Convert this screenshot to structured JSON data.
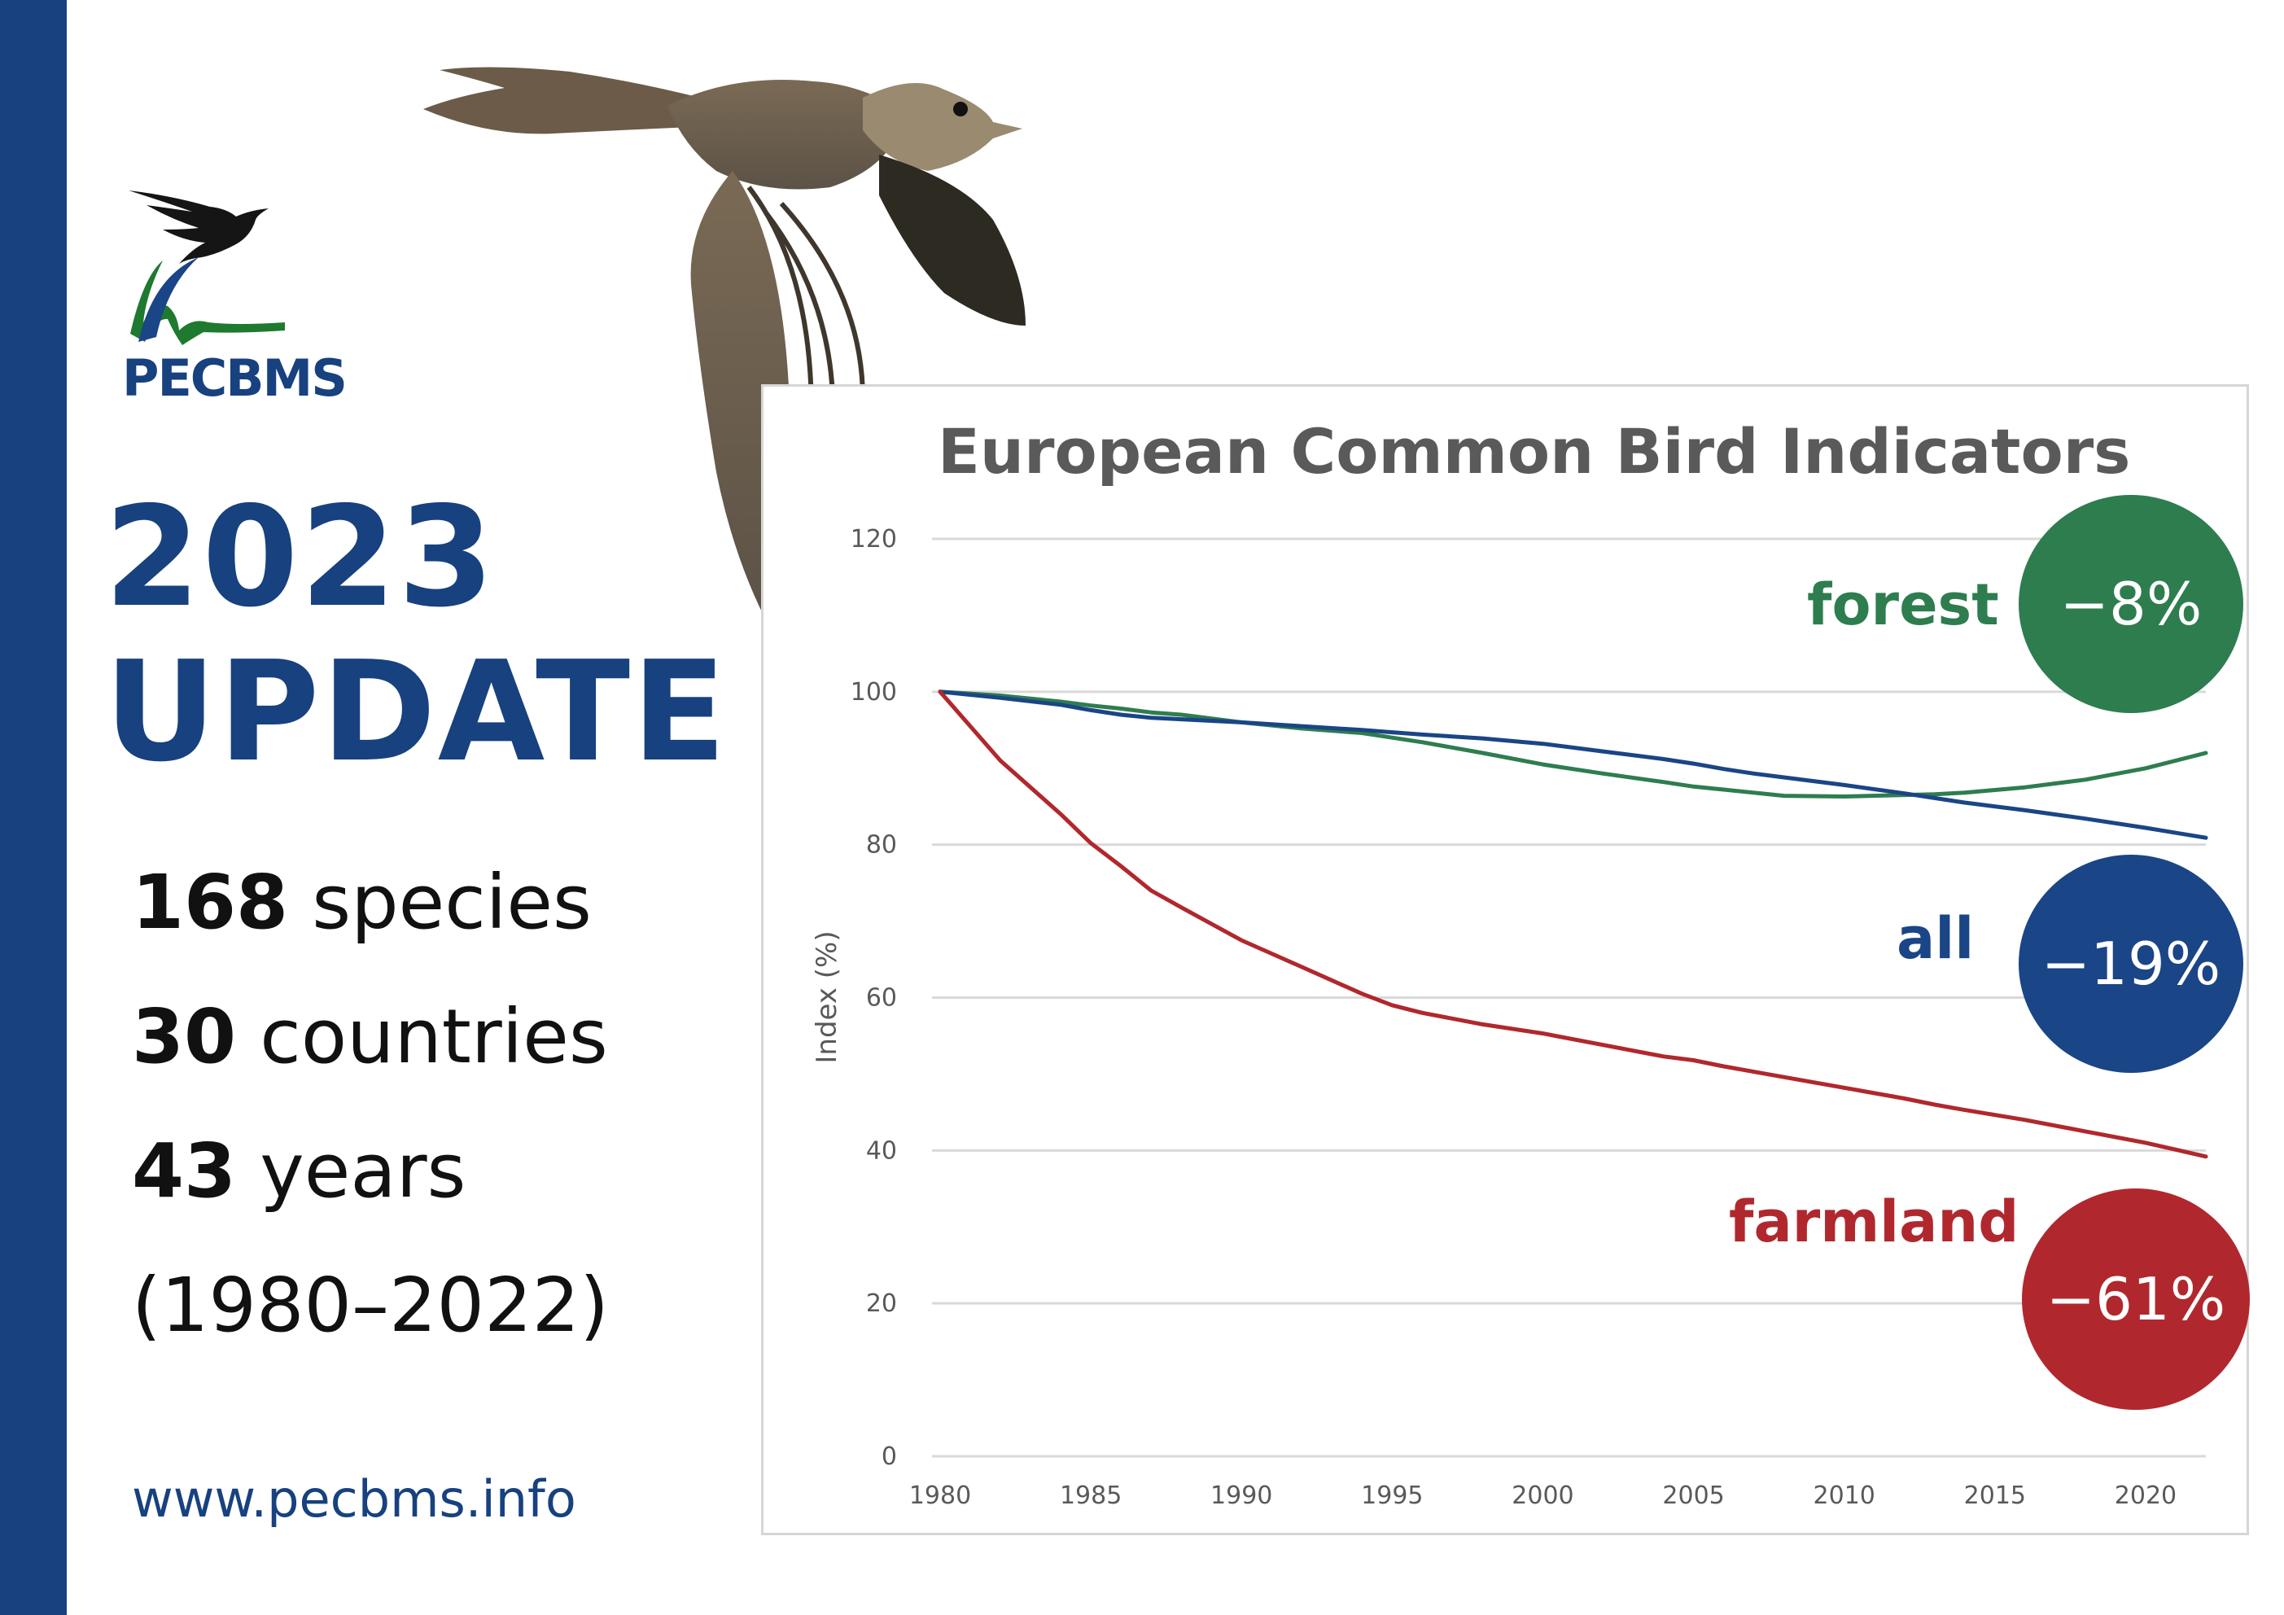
{
  "header": {
    "logo_text": "PECBMS",
    "title_year": "2023",
    "title_word": "UPDATE"
  },
  "stats": [
    {
      "value": "168",
      "label": " species"
    },
    {
      "value": "30",
      "label": " countries"
    },
    {
      "value": "43",
      "label": " years"
    },
    {
      "value": "",
      "label": "(1980–2022)"
    }
  ],
  "website": "www.pecbms.info",
  "colors": {
    "brand_blue": "#17417f",
    "forest": "#2e7d4f",
    "all": "#1a4586",
    "farmland": "#b0282d"
  },
  "chart_data": {
    "type": "line",
    "title": "European Common Bird Indicators",
    "xlabel": "",
    "ylabel": "Index (%)",
    "xlim": [
      1980,
      2022
    ],
    "ylim": [
      0,
      120
    ],
    "x_ticks": [
      1980,
      1985,
      1990,
      1995,
      2000,
      2005,
      2010,
      2015,
      2020
    ],
    "y_ticks": [
      0,
      20,
      40,
      60,
      80,
      100,
      120
    ],
    "grid": true,
    "x": [
      1980,
      1982,
      1984,
      1985,
      1986,
      1987,
      1988,
      1990,
      1992,
      1994,
      1995,
      1996,
      1998,
      2000,
      2002,
      2004,
      2005,
      2006,
      2007,
      2008,
      2010,
      2012,
      2013,
      2014,
      2016,
      2018,
      2020,
      2022
    ],
    "series": [
      {
        "name": "forest",
        "color": "#2e7d4f",
        "change": "−8%",
        "values": [
          100,
          99.5,
          98.7,
          98.2,
          97.8,
          97.3,
          97,
          96,
          95.2,
          94.6,
          94,
          93.4,
          92,
          90.5,
          89.3,
          88.2,
          87.6,
          87.2,
          86.8,
          86.4,
          86.3,
          86.5,
          86.6,
          86.8,
          87.5,
          88.5,
          90,
          92
        ]
      },
      {
        "name": "all",
        "color": "#1a4586",
        "change": "−19%",
        "values": [
          100,
          99.2,
          98.3,
          97.6,
          97,
          96.6,
          96.4,
          96,
          95.5,
          95,
          94.7,
          94.4,
          93.9,
          93.2,
          92.2,
          91.2,
          90.6,
          89.9,
          89.3,
          88.8,
          87.8,
          86.7,
          86.1,
          85.5,
          84.5,
          83.4,
          82.2,
          80.9
        ]
      },
      {
        "name": "farmland",
        "color": "#b0282d",
        "change": "−61%",
        "values": [
          100,
          91,
          84,
          80.2,
          77.2,
          74,
          71.8,
          67.5,
          64,
          60.5,
          59,
          58,
          56.5,
          55.3,
          53.8,
          52.3,
          51.8,
          51,
          50.3,
          49.6,
          48.2,
          46.8,
          46,
          45.3,
          44,
          42.5,
          41,
          39.2
        ]
      }
    ]
  }
}
